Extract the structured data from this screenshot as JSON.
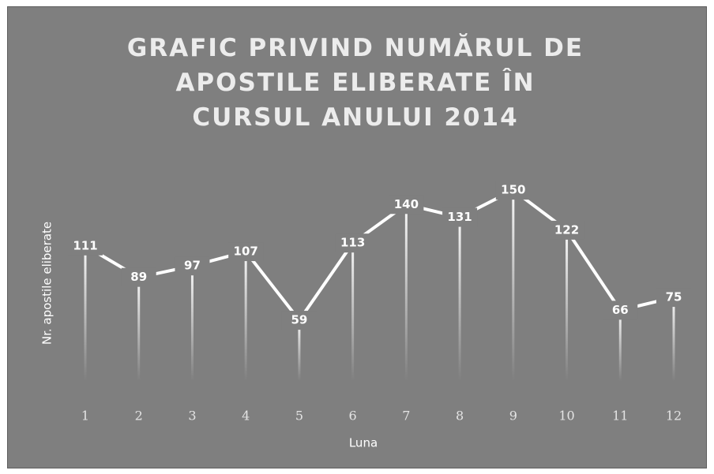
{
  "chart_data": {
    "type": "line",
    "title": "GRAFIC PRIVIND NUMĂRUL DE APOSTILE ELIBERATE ÎN CURSUL ANULUI 2014",
    "x_label": "Luna",
    "y_label": "Nr. apostile eliberate",
    "categories": [
      "1",
      "2",
      "3",
      "4",
      "5",
      "6",
      "7",
      "8",
      "9",
      "10",
      "11",
      "12"
    ],
    "values": [
      111,
      89,
      97,
      107,
      59,
      113,
      140,
      131,
      150,
      122,
      66,
      75
    ],
    "color": "#ffffff",
    "drop_lines": true,
    "data_labels": true,
    "ylim": [
      0,
      160
    ]
  }
}
